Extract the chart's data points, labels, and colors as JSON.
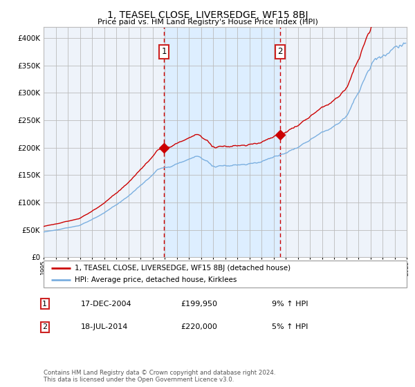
{
  "title": "1, TEASEL CLOSE, LIVERSEDGE, WF15 8BJ",
  "subtitle": "Price paid vs. HM Land Registry's House Price Index (HPI)",
  "red_line_color": "#cc0000",
  "blue_line_color": "#7aafe0",
  "shaded_color": "#ddeeff",
  "grid_color": "#bbbbbb",
  "background_color": "#ffffff",
  "plot_bg_color": "#eef3fa",
  "ylim": [
    0,
    420000
  ],
  "yticks": [
    0,
    50000,
    100000,
    150000,
    200000,
    250000,
    300000,
    350000,
    400000
  ],
  "year_start": 1995,
  "year_end": 2025,
  "sale1_year": 2004.96,
  "sale1_price": 199950,
  "sale2_year": 2014.54,
  "sale2_price": 220000,
  "sale1_label": "17-DEC-2004",
  "sale1_amount": "£199,950",
  "sale1_hpi": "9% ↑ HPI",
  "sale2_label": "18-JUL-2014",
  "sale2_amount": "£220,000",
  "sale2_hpi": "5% ↑ HPI",
  "legend_red": "1, TEASEL CLOSE, LIVERSEDGE, WF15 8BJ (detached house)",
  "legend_blue": "HPI: Average price, detached house, Kirklees",
  "footnote": "Contains HM Land Registry data © Crown copyright and database right 2024.\nThis data is licensed under the Open Government Licence v3.0."
}
